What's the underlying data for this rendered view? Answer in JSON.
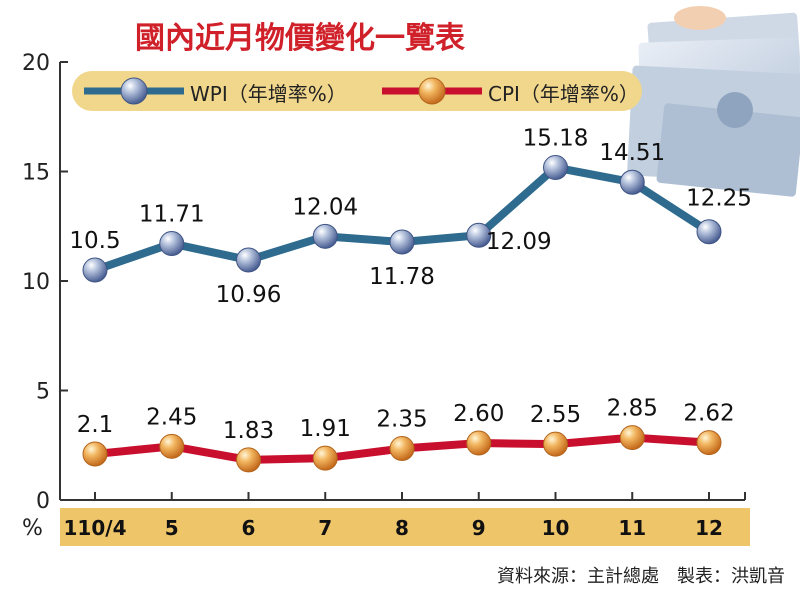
{
  "chart_data": {
    "type": "line",
    "title": "國內近月物價變化一覽表",
    "categories": [
      "110/4",
      "5",
      "6",
      "7",
      "8",
      "9",
      "10",
      "11",
      "12"
    ],
    "series": [
      {
        "name": "WPI（年增率%）",
        "values": [
          10.5,
          11.71,
          10.96,
          12.04,
          11.78,
          12.09,
          15.18,
          14.51,
          12.25
        ],
        "labels": [
          "10.5",
          "11.71",
          "10.96",
          "12.04",
          "11.78",
          "12.09",
          "15.18",
          "14.51",
          "12.25"
        ],
        "color": "#2e6b8e"
      },
      {
        "name": "CPI（年增率%）",
        "values": [
          2.1,
          2.45,
          1.83,
          1.91,
          2.35,
          2.6,
          2.55,
          2.85,
          2.62
        ],
        "labels": [
          "2.1",
          "2.45",
          "1.83",
          "1.91",
          "2.35",
          "2.60",
          "2.55",
          "2.85",
          "2.62"
        ],
        "color": "#c8102e"
      }
    ],
    "ylim": [
      0,
      20
    ],
    "yticks": [
      "0",
      "5",
      "10",
      "15",
      "20"
    ],
    "y_unit": "%",
    "legend_position": "top-left",
    "grid": false
  },
  "source_note": "資料來源：主計總處　製表：洪凱音",
  "colors": {
    "title": "#d0202a",
    "axis": "#333333",
    "legend_bg": "#f0d78c",
    "xband_bg": "#efc56a",
    "plot_bg": "#ffffff"
  }
}
